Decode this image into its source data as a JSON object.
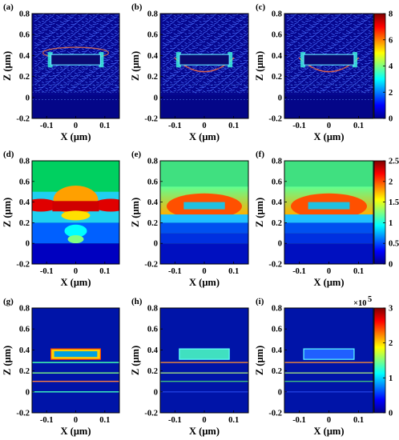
{
  "figure": {
    "exponent_label": "×10",
    "exponent_power": "5"
  },
  "chart_data": [
    {
      "type": "heatmap",
      "panel": "(a)",
      "field": "vector-arrows",
      "xlabel": "X (μm)",
      "ylabel": "Z (μm)",
      "xlim": [
        -0.15,
        0.15
      ],
      "ylim": [
        -0.2,
        0.8
      ],
      "xticks": [
        "-0.1",
        "0",
        "0.1"
      ],
      "yticks": [
        "-0.2",
        "0",
        "0.2",
        "0.4",
        "0.6",
        "0.8"
      ],
      "structure": {
        "box_x": [
          -0.085,
          0.085
        ],
        "box_z": [
          0.31,
          0.41
        ],
        "layers_z": [
          0.28,
          0.2,
          0.12,
          0.05,
          -0.02
        ]
      }
    },
    {
      "type": "heatmap",
      "panel": "(b)",
      "field": "vector-arrows",
      "xlabel": "X (μm)",
      "ylabel": "Z (μm)",
      "xlim": [
        -0.15,
        0.15
      ],
      "ylim": [
        -0.2,
        0.8
      ],
      "xticks": [
        "-0.1",
        "0",
        "0.1"
      ],
      "yticks": [
        "-0.2",
        "0",
        "0.2",
        "0.4",
        "0.6",
        "0.8"
      ],
      "structure": {
        "box_x": [
          -0.085,
          0.085
        ],
        "box_z": [
          0.31,
          0.41
        ],
        "layers_z": [
          0.28,
          0.2,
          0.12,
          0.05,
          -0.02
        ]
      }
    },
    {
      "type": "heatmap",
      "panel": "(c)",
      "field": "vector-arrows",
      "xlabel": "X (μm)",
      "ylabel": "Z (μm)",
      "xlim": [
        -0.15,
        0.15
      ],
      "ylim": [
        -0.2,
        0.8
      ],
      "xticks": [
        "-0.1",
        "0",
        "0.1"
      ],
      "yticks": [
        "-0.2",
        "0",
        "0.2",
        "0.4",
        "0.6",
        "0.8"
      ],
      "colorbar": {
        "range": [
          0,
          8
        ],
        "ticks": [
          "0",
          "2",
          "4",
          "6",
          "8"
        ]
      },
      "structure": {
        "box_x": [
          -0.085,
          0.085
        ],
        "box_z": [
          0.31,
          0.41
        ],
        "layers_z": [
          0.28,
          0.2,
          0.12,
          0.05,
          -0.02
        ]
      }
    },
    {
      "type": "heatmap",
      "panel": "(d)",
      "field": "intensity-interference",
      "xlabel": "X (μm)",
      "ylabel": "Z (μm)",
      "xlim": [
        -0.15,
        0.15
      ],
      "ylim": [
        -0.2,
        0.8
      ],
      "xticks": [
        "-0.1",
        "0",
        "0.1"
      ],
      "yticks": [
        "-0.2",
        "0",
        "0.2",
        "0.4",
        "0.6",
        "0.8"
      ]
    },
    {
      "type": "heatmap",
      "panel": "(e)",
      "field": "intensity-layered",
      "xlabel": "X (μm)",
      "ylabel": "Z (μm)",
      "xlim": [
        -0.15,
        0.15
      ],
      "ylim": [
        -0.2,
        0.8
      ],
      "xticks": [
        "-0.1",
        "0",
        "0.1"
      ],
      "yticks": [
        "-0.2",
        "0",
        "0.2",
        "0.4",
        "0.6",
        "0.8"
      ]
    },
    {
      "type": "heatmap",
      "panel": "(f)",
      "field": "intensity-layered",
      "xlabel": "X (μm)",
      "ylabel": "Z (μm)",
      "xlim": [
        -0.15,
        0.15
      ],
      "ylim": [
        -0.2,
        0.8
      ],
      "xticks": [
        "-0.1",
        "0",
        "0.1"
      ],
      "yticks": [
        "-0.2",
        "0",
        "0.2",
        "0.4",
        "0.6",
        "0.8"
      ],
      "colorbar": {
        "range": [
          0,
          2.5
        ],
        "ticks": [
          "0",
          "0.5",
          "1",
          "1.5",
          "2",
          "2.5"
        ]
      }
    },
    {
      "type": "heatmap",
      "panel": "(g)",
      "field": "absorption",
      "xlabel": "X (μm)",
      "ylabel": "Z (μm)",
      "xlim": [
        -0.15,
        0.15
      ],
      "ylim": [
        -0.2,
        0.8
      ],
      "xticks": [
        "-0.1",
        "0",
        "0.1"
      ],
      "yticks": [
        "-0.2",
        "0",
        "0.2",
        "0.4",
        "0.6",
        "0.8"
      ]
    },
    {
      "type": "heatmap",
      "panel": "(h)",
      "field": "absorption",
      "xlabel": "X (μm)",
      "ylabel": "Z (μm)",
      "xlim": [
        -0.15,
        0.15
      ],
      "ylim": [
        -0.2,
        0.8
      ],
      "xticks": [
        "-0.1",
        "0",
        "0.1"
      ],
      "yticks": [
        "-0.2",
        "0",
        "0.2",
        "0.4",
        "0.6",
        "0.8"
      ]
    },
    {
      "type": "heatmap",
      "panel": "(i)",
      "field": "absorption",
      "xlabel": "X (μm)",
      "ylabel": "Z (μm)",
      "xlim": [
        -0.15,
        0.15
      ],
      "ylim": [
        -0.2,
        0.8
      ],
      "xticks": [
        "-0.1",
        "0",
        "0.1"
      ],
      "yticks": [
        "-0.2",
        "0",
        "0.2",
        "0.4",
        "0.6",
        "0.8"
      ],
      "colorbar": {
        "range": [
          0,
          300000
        ],
        "ticks": [
          "0",
          "1",
          "2",
          "3"
        ],
        "scale_label": "×10^5"
      }
    }
  ],
  "colormap": [
    "#00008f",
    "#0000ff",
    "#00ffff",
    "#ffff00",
    "#ff0000",
    "#800000"
  ]
}
